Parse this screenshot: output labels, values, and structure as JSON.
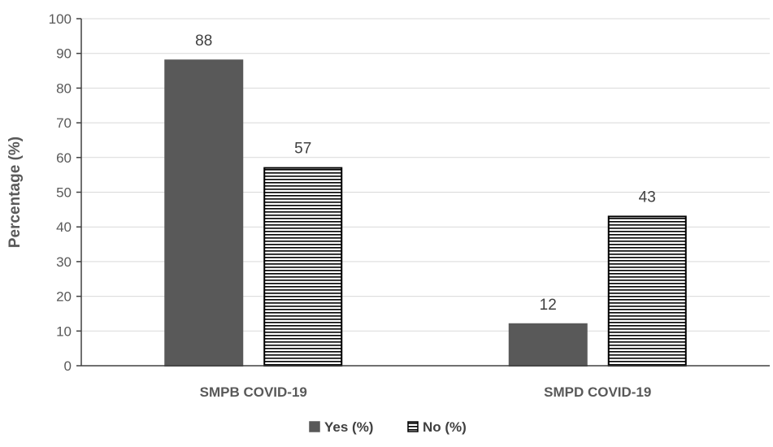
{
  "chart_data": {
    "type": "bar",
    "title": "",
    "xlabel": "",
    "ylabel": "Percentage (%)",
    "ylim": [
      0,
      100
    ],
    "yticks": [
      0,
      10,
      20,
      30,
      40,
      50,
      60,
      70,
      80,
      90,
      100
    ],
    "categories": [
      "SMPB COVID-19",
      "SMPD COVID-19"
    ],
    "series": [
      {
        "name": "Yes (%)",
        "values": [
          88,
          12
        ],
        "color": "#595959",
        "pattern": "solid"
      },
      {
        "name": "No (%)",
        "values": [
          57,
          43
        ],
        "color": "#000000",
        "pattern": "horizontal-stripes"
      }
    ],
    "grid": true,
    "legend_position": "bottom"
  }
}
